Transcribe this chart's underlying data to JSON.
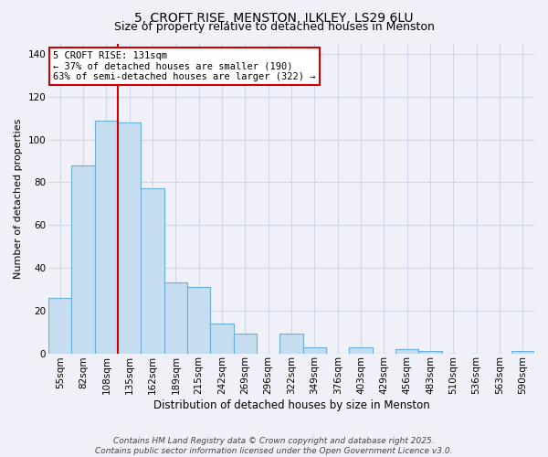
{
  "title": "5, CROFT RISE, MENSTON, ILKLEY, LS29 6LU",
  "subtitle": "Size of property relative to detached houses in Menston",
  "xlabel": "Distribution of detached houses by size in Menston",
  "ylabel": "Number of detached properties",
  "categories": [
    "55sqm",
    "82sqm",
    "108sqm",
    "135sqm",
    "162sqm",
    "189sqm",
    "215sqm",
    "242sqm",
    "269sqm",
    "296sqm",
    "322sqm",
    "349sqm",
    "376sqm",
    "403sqm",
    "429sqm",
    "456sqm",
    "483sqm",
    "510sqm",
    "536sqm",
    "563sqm",
    "590sqm"
  ],
  "values": [
    26,
    88,
    109,
    108,
    77,
    33,
    31,
    14,
    9,
    0,
    9,
    3,
    0,
    3,
    0,
    2,
    1,
    0,
    0,
    0,
    1
  ],
  "bar_color": "#c5ddef",
  "bar_edge_color": "#6aafd6",
  "vline_index": 2.5,
  "vline_color": "#cc0000",
  "ylim": [
    0,
    145
  ],
  "yticks": [
    0,
    20,
    40,
    60,
    80,
    100,
    120,
    140
  ],
  "annotation_title": "5 CROFT RISE: 131sqm",
  "annotation_line1": "← 37% of detached houses are smaller (190)",
  "annotation_line2": "63% of semi-detached houses are larger (322) →",
  "footer1": "Contains HM Land Registry data © Crown copyright and database right 2025.",
  "footer2": "Contains public sector information licensed under the Open Government Licence v3.0.",
  "background_color": "#f0f0f8",
  "grid_color": "#d0d8e8",
  "title_fontsize": 10,
  "subtitle_fontsize": 9,
  "xlabel_fontsize": 8.5,
  "ylabel_fontsize": 8,
  "tick_fontsize": 7.5,
  "annotation_fontsize": 7.5,
  "footer_fontsize": 6.5
}
